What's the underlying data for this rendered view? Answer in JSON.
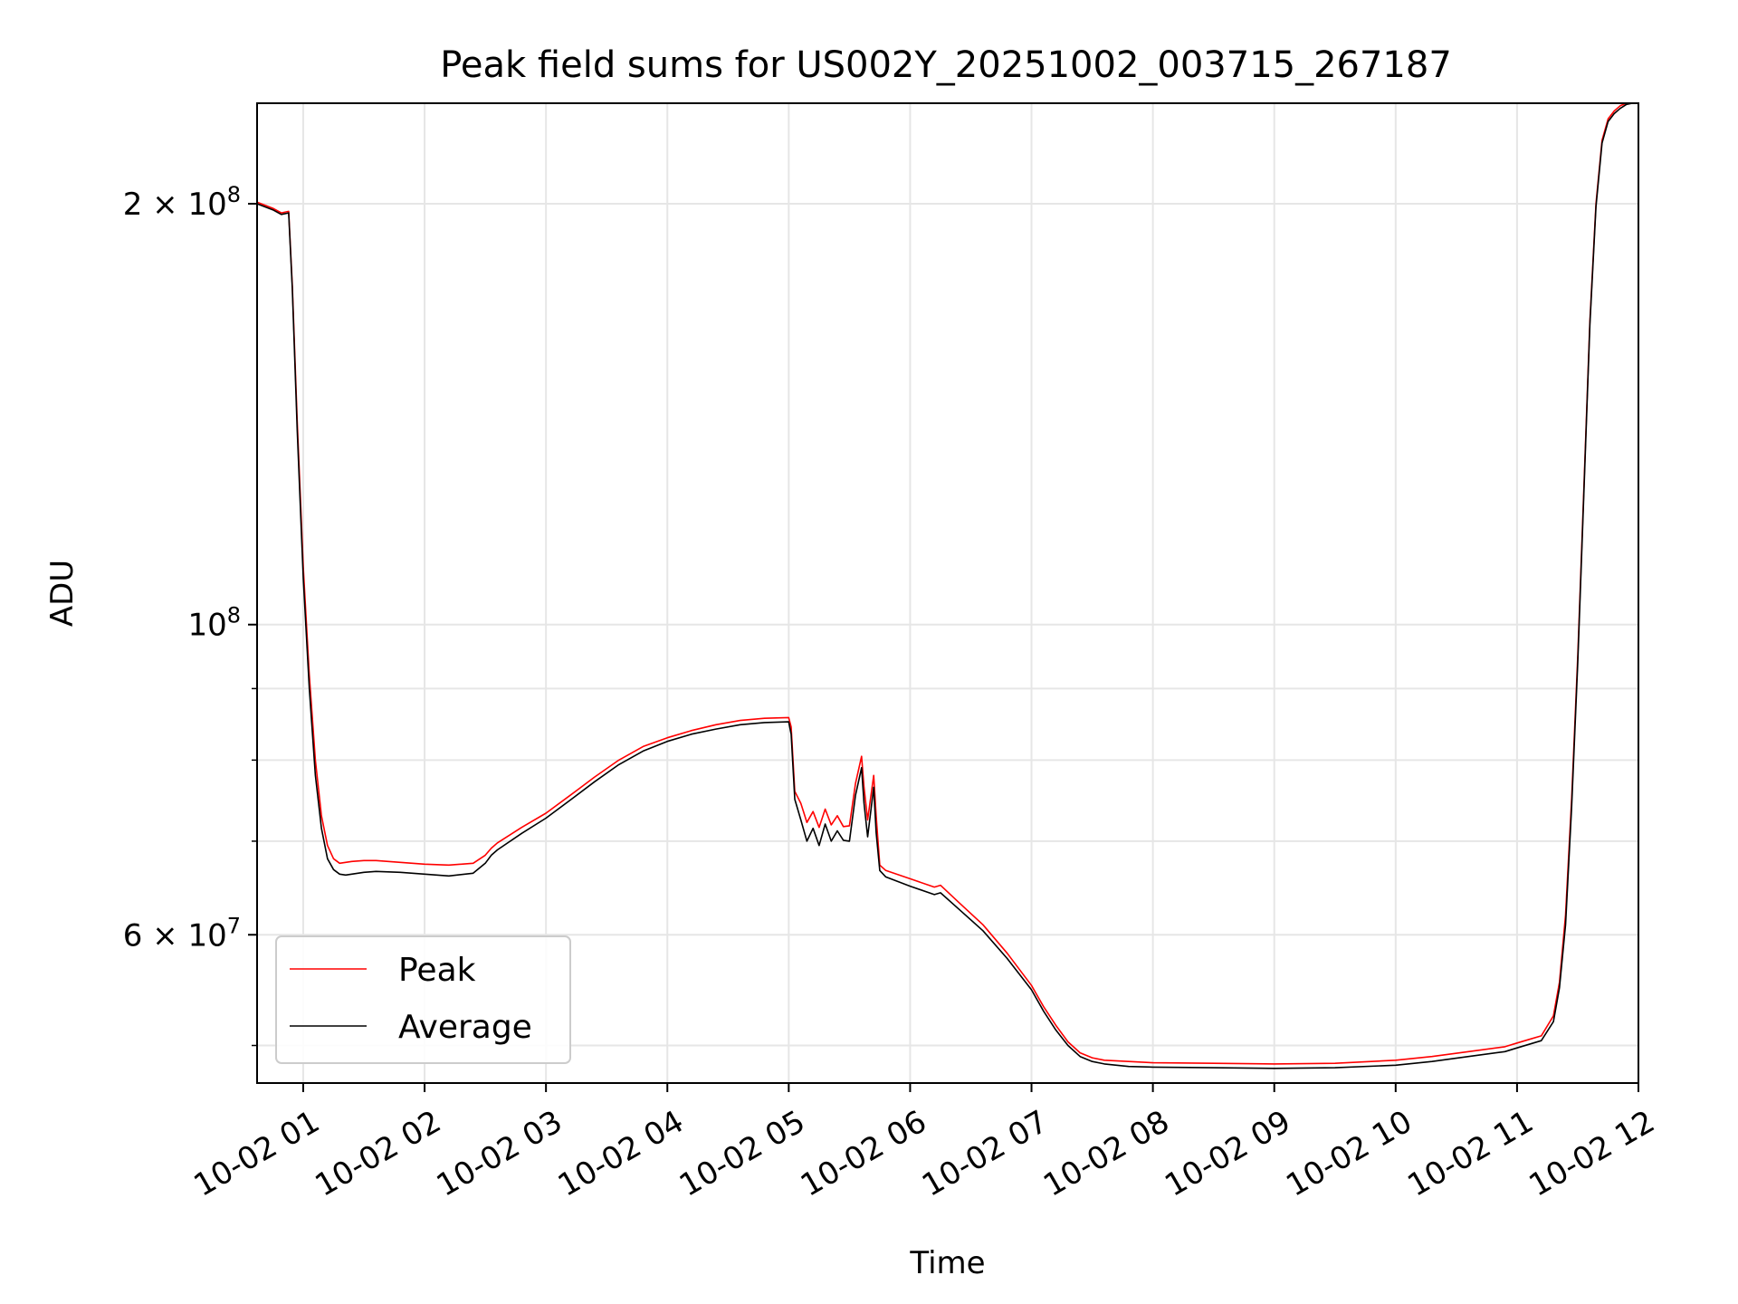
{
  "chart_data": {
    "type": "line",
    "title": "Peak field sums for US002Y_20251002_003715_267187",
    "xlabel": "Time",
    "ylabel": "ADU",
    "yscale": "log",
    "grid": true,
    "x_unit": "hours since 10-02 00:00",
    "xlim": [
      0.62,
      12.0
    ],
    "ylim": [
      47000000,
      236000000
    ],
    "x_ticks": [
      {
        "value": 1,
        "label": "10-02 01"
      },
      {
        "value": 2,
        "label": "10-02 02"
      },
      {
        "value": 3,
        "label": "10-02 03"
      },
      {
        "value": 4,
        "label": "10-02 04"
      },
      {
        "value": 5,
        "label": "10-02 05"
      },
      {
        "value": 6,
        "label": "10-02 06"
      },
      {
        "value": 7,
        "label": "10-02 07"
      },
      {
        "value": 8,
        "label": "10-02 08"
      },
      {
        "value": 9,
        "label": "10-02 09"
      },
      {
        "value": 10,
        "label": "10-02 10"
      },
      {
        "value": 11,
        "label": "10-02 11"
      },
      {
        "value": 12,
        "label": "10-02 12"
      }
    ],
    "y_ticks": [
      {
        "value": 200000000,
        "base": "2 × 10",
        "exp": "8"
      },
      {
        "value": 100000000,
        "base": "10",
        "exp": "8"
      },
      {
        "value": 60000000,
        "base": "6 × 10",
        "exp": "7"
      }
    ],
    "y_minor_ticks": [
      50000000,
      70000000,
      80000000,
      90000000
    ],
    "legend": {
      "position": "lower-left"
    },
    "series": [
      {
        "name": "Peak",
        "color": "#ff0000",
        "x": [
          0.62,
          0.75,
          0.82,
          0.88,
          0.91,
          0.95,
          1.0,
          1.05,
          1.1,
          1.15,
          1.2,
          1.25,
          1.3,
          1.35,
          1.4,
          1.5,
          1.6,
          1.8,
          2.0,
          2.2,
          2.4,
          2.5,
          2.55,
          2.6,
          2.8,
          3.0,
          3.2,
          3.4,
          3.6,
          3.8,
          4.0,
          4.2,
          4.4,
          4.6,
          4.8,
          5.0,
          5.02,
          5.05,
          5.1,
          5.15,
          5.2,
          5.25,
          5.3,
          5.35,
          5.4,
          5.45,
          5.5,
          5.55,
          5.6,
          5.62,
          5.65,
          5.7,
          5.72,
          5.75,
          5.8,
          6.0,
          6.2,
          6.25,
          6.4,
          6.6,
          6.8,
          7.0,
          7.1,
          7.2,
          7.3,
          7.4,
          7.5,
          7.6,
          7.8,
          8.0,
          8.5,
          9.0,
          9.5,
          10.0,
          10.3,
          10.6,
          10.9,
          11.0,
          11.1,
          11.2,
          11.3,
          11.35,
          11.4,
          11.45,
          11.5,
          11.55,
          11.6,
          11.65,
          11.7,
          11.75,
          11.8,
          11.85,
          11.9,
          11.95,
          12.0
        ],
        "values": [
          200500000,
          198500000,
          197000000,
          197500000,
          175000000,
          140000000,
          110000000,
          92000000,
          80000000,
          73000000,
          69500000,
          68000000,
          67500000,
          67600000,
          67700000,
          67800000,
          67800000,
          67600000,
          67400000,
          67300000,
          67500000,
          68400000,
          69200000,
          69800000,
          71600000,
          73300000,
          75500000,
          77800000,
          80000000,
          81800000,
          83000000,
          84000000,
          84800000,
          85400000,
          85700000,
          85800000,
          84500000,
          76000000,
          74500000,
          72200000,
          73500000,
          71600000,
          73800000,
          71900000,
          73000000,
          71700000,
          71800000,
          77000000,
          80500000,
          76500000,
          72500000,
          78000000,
          73000000,
          67300000,
          66700000,
          65800000,
          64900000,
          65100000,
          63300000,
          61000000,
          58200000,
          55200000,
          53300000,
          51700000,
          50300000,
          49400000,
          49000000,
          48800000,
          48700000,
          48600000,
          48550000,
          48500000,
          48550000,
          48800000,
          49100000,
          49500000,
          49900000,
          50200000,
          50500000,
          50800000,
          52500000,
          55500000,
          62000000,
          75000000,
          95000000,
          125000000,
          165000000,
          200000000,
          222000000,
          230000000,
          233000000,
          235000000,
          236000000,
          236000000,
          236000000
        ]
      },
      {
        "name": "Average",
        "color": "#000000",
        "x": [
          0.62,
          0.75,
          0.82,
          0.88,
          0.91,
          0.95,
          1.0,
          1.05,
          1.1,
          1.15,
          1.2,
          1.25,
          1.3,
          1.35,
          1.4,
          1.5,
          1.6,
          1.8,
          2.0,
          2.2,
          2.4,
          2.5,
          2.55,
          2.6,
          2.8,
          3.0,
          3.2,
          3.4,
          3.6,
          3.8,
          4.0,
          4.2,
          4.4,
          4.6,
          4.8,
          5.0,
          5.02,
          5.05,
          5.1,
          5.15,
          5.2,
          5.25,
          5.3,
          5.35,
          5.4,
          5.45,
          5.5,
          5.55,
          5.6,
          5.62,
          5.65,
          5.7,
          5.72,
          5.75,
          5.8,
          6.0,
          6.2,
          6.25,
          6.4,
          6.6,
          6.8,
          7.0,
          7.1,
          7.2,
          7.3,
          7.4,
          7.5,
          7.6,
          7.8,
          8.0,
          8.5,
          9.0,
          9.5,
          10.0,
          10.3,
          10.6,
          10.9,
          11.0,
          11.1,
          11.2,
          11.3,
          11.35,
          11.4,
          11.45,
          11.5,
          11.55,
          11.6,
          11.65,
          11.7,
          11.75,
          11.8,
          11.85,
          11.9,
          11.95,
          12.0
        ],
        "values": [
          200000000,
          198000000,
          196500000,
          197000000,
          174000000,
          138000000,
          108000000,
          90000000,
          78000000,
          71500000,
          68000000,
          66800000,
          66300000,
          66200000,
          66300000,
          66500000,
          66600000,
          66500000,
          66300000,
          66100000,
          66400000,
          67500000,
          68400000,
          69000000,
          70900000,
          72700000,
          74900000,
          77200000,
          79400000,
          81200000,
          82500000,
          83500000,
          84200000,
          84800000,
          85100000,
          85200000,
          83500000,
          75000000,
          72500000,
          70000000,
          71500000,
          69500000,
          72000000,
          70000000,
          71200000,
          70100000,
          70000000,
          75500000,
          79000000,
          74500000,
          70500000,
          76500000,
          71000000,
          66700000,
          66000000,
          65000000,
          64100000,
          64300000,
          62600000,
          60400000,
          57700000,
          54800000,
          52900000,
          51300000,
          50000000,
          49100000,
          48700000,
          48500000,
          48300000,
          48250000,
          48200000,
          48150000,
          48200000,
          48400000,
          48700000,
          49100000,
          49500000,
          49800000,
          50100000,
          50400000,
          52000000,
          55000000,
          61000000,
          74000000,
          94000000,
          124000000,
          164000000,
          199000000,
          221000000,
          229000000,
          232000000,
          234000000,
          235500000,
          236000000,
          236000000
        ]
      }
    ]
  }
}
